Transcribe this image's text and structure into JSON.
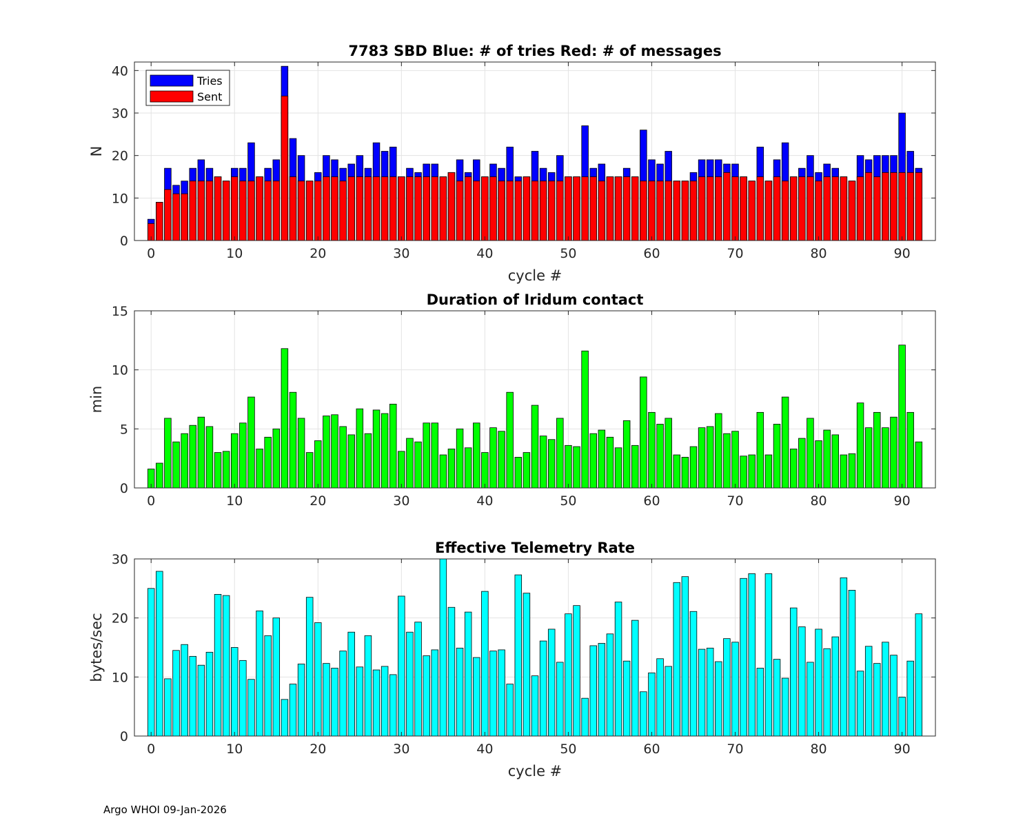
{
  "footer": "Argo WHOI 09-Jan-2026",
  "chart_data": [
    {
      "type": "bar",
      "stacked": "overlay",
      "title": "7783 SBD  Blue: # of tries   Red: # of messages",
      "xlabel": "cycle #",
      "ylabel": "N",
      "xlim": [
        -2,
        94
      ],
      "ylim": [
        0,
        42
      ],
      "xticks": [
        0,
        10,
        20,
        30,
        40,
        50,
        60,
        70,
        80,
        90
      ],
      "yticks": [
        0,
        10,
        20,
        30,
        40
      ],
      "grid": true,
      "legend": {
        "position": "top-left",
        "entries": [
          "Tries",
          "Sent"
        ]
      },
      "colors": {
        "Tries": "#0000ff",
        "Sent": "#ff0000"
      },
      "x_start": 0,
      "series": [
        {
          "name": "Tries",
          "values": [
            5,
            9,
            17,
            13,
            14,
            17,
            19,
            17,
            15,
            14,
            17,
            17,
            23,
            15,
            17,
            19,
            41,
            24,
            20,
            14,
            16,
            20,
            19,
            17,
            18,
            20,
            17,
            23,
            21,
            22,
            15,
            17,
            16,
            18,
            18,
            15,
            16,
            19,
            16,
            19,
            15,
            18,
            17,
            22,
            15,
            15,
            21,
            17,
            16,
            20,
            15,
            15,
            27,
            17,
            18,
            15,
            15,
            17,
            15,
            26,
            19,
            18,
            21,
            14,
            14,
            16,
            19,
            19,
            19,
            18,
            18,
            15,
            14,
            22,
            14,
            19,
            23,
            15,
            17,
            20,
            16,
            18,
            17,
            15,
            14,
            20,
            19,
            20,
            20,
            20,
            30,
            21,
            17
          ]
        },
        {
          "name": "Sent",
          "values": [
            4,
            9,
            12,
            11,
            11,
            14,
            14,
            14,
            15,
            14,
            15,
            14,
            14,
            15,
            14,
            14,
            34,
            15,
            14,
            14,
            14,
            15,
            15,
            14,
            15,
            15,
            15,
            15,
            15,
            15,
            15,
            15,
            15,
            15,
            15,
            15,
            16,
            14,
            15,
            14,
            15,
            15,
            14,
            14,
            14,
            15,
            14,
            14,
            14,
            14,
            15,
            15,
            15,
            15,
            14,
            15,
            15,
            15,
            15,
            14,
            14,
            14,
            14,
            14,
            14,
            14,
            15,
            15,
            15,
            16,
            15,
            15,
            14,
            15,
            14,
            15,
            14,
            15,
            15,
            15,
            14,
            15,
            15,
            15,
            14,
            15,
            16,
            15,
            16,
            16,
            16,
            16,
            16
          ]
        }
      ]
    },
    {
      "type": "bar",
      "title": "Duration of Iridum contact",
      "xlabel": "",
      "ylabel": "min",
      "xlim": [
        -2,
        94
      ],
      "ylim": [
        0,
        15
      ],
      "xticks": [
        0,
        10,
        20,
        30,
        40,
        50,
        60,
        70,
        80,
        90
      ],
      "yticks": [
        0,
        5,
        10,
        15
      ],
      "grid": true,
      "color": "#00ff00",
      "x_start": 0,
      "values": [
        1.6,
        2.1,
        5.9,
        3.9,
        4.6,
        5.3,
        6.0,
        5.2,
        3.0,
        3.1,
        4.6,
        5.5,
        7.7,
        3.3,
        4.3,
        5.0,
        11.8,
        8.1,
        5.9,
        3.0,
        4.0,
        6.1,
        6.2,
        5.2,
        4.5,
        6.7,
        4.6,
        6.6,
        6.3,
        7.1,
        3.1,
        4.2,
        3.9,
        5.5,
        5.5,
        2.8,
        3.3,
        5.0,
        3.4,
        5.5,
        3.0,
        5.1,
        4.8,
        8.1,
        2.6,
        3.0,
        7.0,
        4.4,
        4.1,
        5.9,
        3.6,
        3.5,
        11.6,
        4.6,
        4.9,
        4.3,
        3.4,
        5.7,
        3.6,
        9.4,
        6.4,
        5.4,
        5.9,
        2.8,
        2.6,
        3.5,
        5.1,
        5.2,
        6.3,
        4.6,
        4.8,
        2.7,
        2.8,
        6.4,
        2.8,
        5.4,
        7.7,
        3.3,
        4.2,
        5.9,
        4.0,
        4.9,
        4.5,
        2.8,
        2.9,
        7.2,
        5.1,
        6.4,
        5.1,
        6.0,
        12.1,
        6.4,
        3.9
      ]
    },
    {
      "type": "bar",
      "title": "Effective Telemetry Rate",
      "xlabel": "cycle #",
      "ylabel": "bytes/sec",
      "xlim": [
        -2,
        94
      ],
      "ylim": [
        0,
        30
      ],
      "xticks": [
        0,
        10,
        20,
        30,
        40,
        50,
        60,
        70,
        80,
        90
      ],
      "yticks": [
        0,
        10,
        20,
        30
      ],
      "grid": true,
      "color": "#00ffff",
      "x_start": 0,
      "values": [
        25.0,
        27.9,
        9.7,
        14.5,
        15.5,
        13.5,
        12.0,
        14.2,
        24.0,
        23.8,
        15.0,
        12.8,
        9.6,
        21.2,
        17.0,
        20.0,
        6.2,
        8.8,
        12.2,
        23.5,
        19.2,
        12.3,
        11.5,
        14.4,
        17.6,
        11.7,
        17.0,
        11.2,
        11.8,
        10.4,
        23.7,
        17.6,
        19.3,
        13.6,
        14.6,
        30.0,
        21.8,
        14.9,
        21.0,
        13.3,
        24.5,
        14.4,
        14.6,
        8.8,
        27.3,
        24.2,
        10.2,
        16.1,
        18.1,
        12.5,
        20.7,
        22.1,
        6.4,
        15.3,
        15.7,
        17.3,
        22.7,
        12.7,
        19.6,
        7.5,
        10.7,
        13.1,
        11.8,
        26.0,
        27.0,
        21.1,
        14.7,
        14.9,
        12.6,
        16.5,
        15.9,
        26.7,
        27.5,
        11.5,
        27.5,
        13.0,
        9.8,
        21.7,
        18.5,
        12.5,
        18.1,
        14.8,
        16.8,
        26.8,
        24.7,
        11.0,
        15.2,
        12.3,
        15.9,
        13.7,
        6.6,
        12.7,
        20.7
      ]
    }
  ]
}
